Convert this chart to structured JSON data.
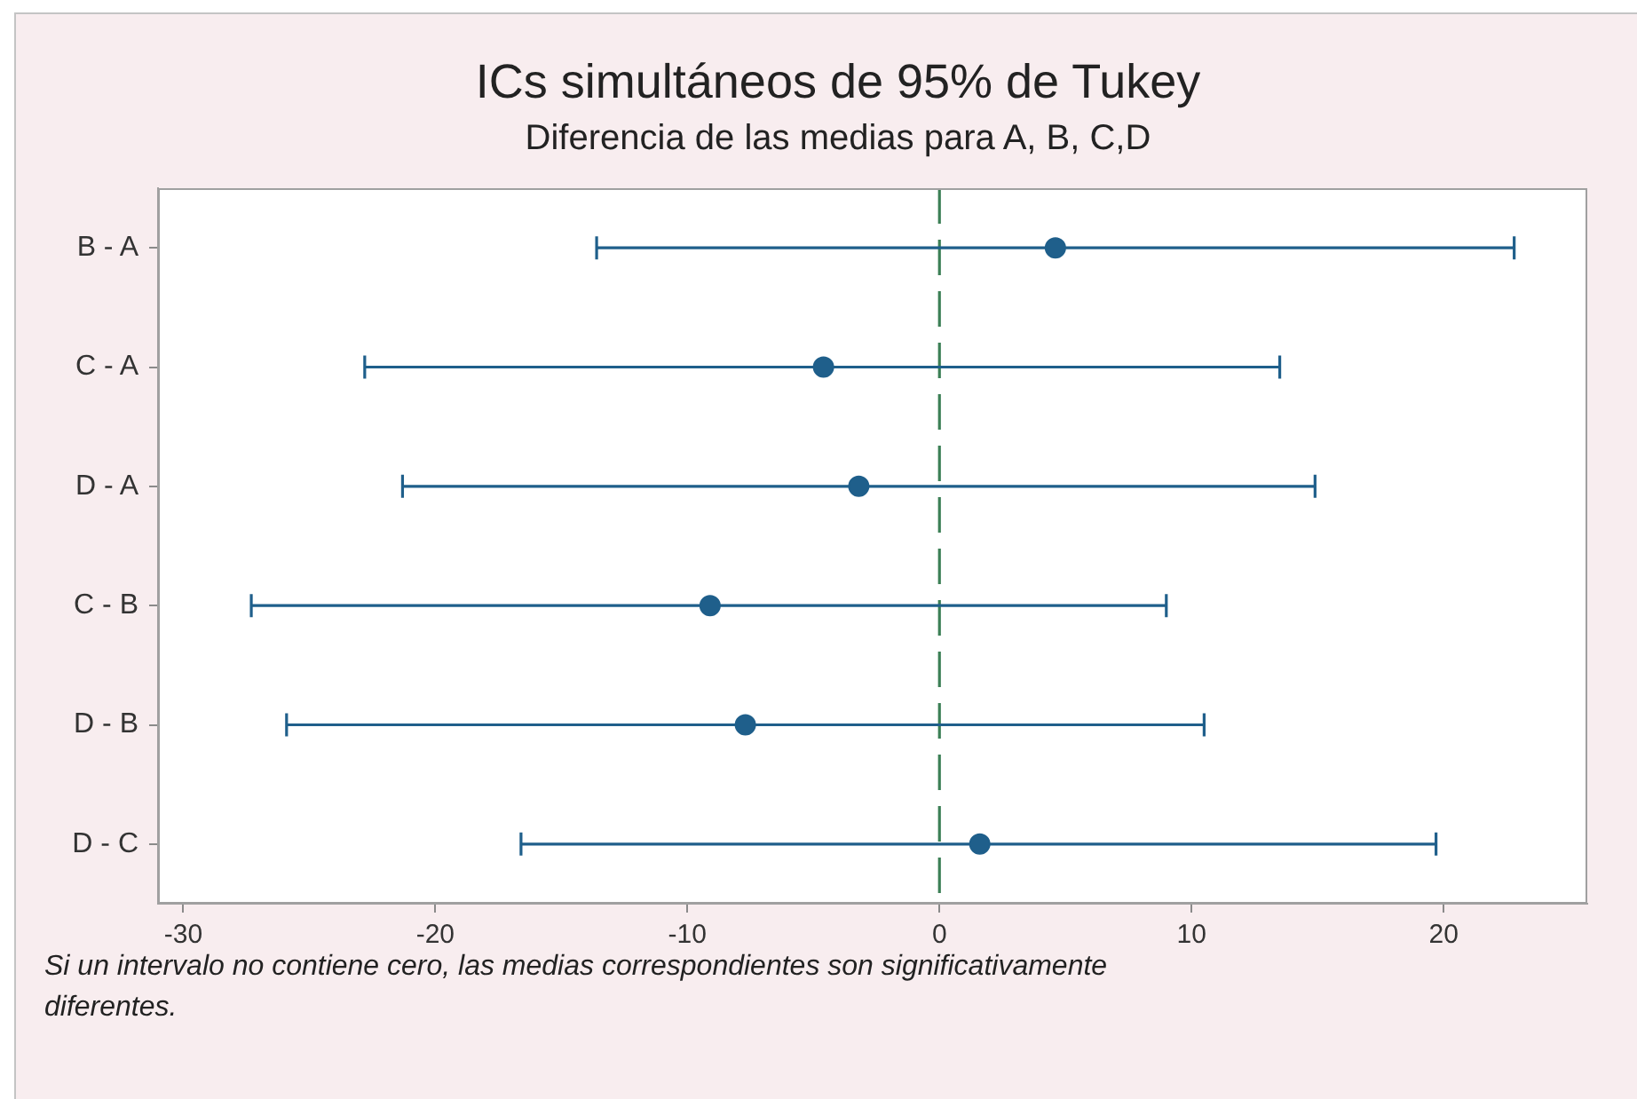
{
  "chart_data": {
    "type": "scatter",
    "orientation": "horizontal",
    "title": "ICs simultáneos de 95% de Tukey",
    "subtitle": "Diferencia de las medias para A, B, C,D",
    "categories": [
      "B - A",
      "C - A",
      "D - A",
      "C - B",
      "D - B",
      "D - C"
    ],
    "values": [
      4.6,
      -4.6,
      -3.2,
      -9.1,
      -7.7,
      1.6
    ],
    "errors": [
      [
        -13.6,
        22.8
      ],
      [
        -22.8,
        13.5
      ],
      [
        -21.3,
        14.9
      ],
      [
        -27.3,
        9.0
      ],
      [
        -25.9,
        10.5
      ],
      [
        -16.6,
        19.7
      ]
    ],
    "color": "#1f5f8b",
    "marker": "circle",
    "xlim": [
      -31,
      25.7
    ],
    "xticks": [
      -30,
      -20,
      -10,
      0,
      10,
      20
    ],
    "ref_lines": [
      {
        "axis": "x",
        "value": 0,
        "color": "#3b7f55",
        "line_style": "dashed"
      }
    ],
    "grid": false,
    "legend": false,
    "annotations": [
      "Si un intervalo no contiene cero, las medias correspondientes son significativamente diferentes."
    ]
  }
}
